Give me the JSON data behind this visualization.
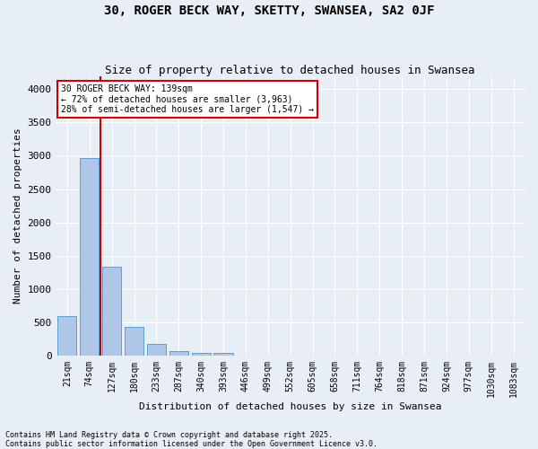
{
  "title1": "30, ROGER BECK WAY, SKETTY, SWANSEA, SA2 0JF",
  "title2": "Size of property relative to detached houses in Swansea",
  "xlabel": "Distribution of detached houses by size in Swansea",
  "ylabel": "Number of detached properties",
  "categories": [
    "21sqm",
    "74sqm",
    "127sqm",
    "180sqm",
    "233sqm",
    "287sqm",
    "340sqm",
    "393sqm",
    "446sqm",
    "499sqm",
    "552sqm",
    "605sqm",
    "658sqm",
    "711sqm",
    "764sqm",
    "818sqm",
    "871sqm",
    "924sqm",
    "977sqm",
    "1030sqm",
    "1083sqm"
  ],
  "values": [
    590,
    2970,
    1340,
    430,
    175,
    70,
    45,
    35,
    0,
    0,
    0,
    0,
    0,
    0,
    0,
    0,
    0,
    0,
    0,
    0,
    0
  ],
  "bar_color": "#aec6e8",
  "bar_edge_color": "#5a9fd4",
  "vline_x": 1.5,
  "vline_color": "#cc0000",
  "annotation_text": "30 ROGER BECK WAY: 139sqm\n← 72% of detached houses are smaller (3,963)\n28% of semi-detached houses are larger (1,547) →",
  "annotation_box_color": "#ffffff",
  "annotation_box_edge_color": "#cc0000",
  "bg_color": "#e8eef5",
  "plot_bg_color": "#e8eef5",
  "grid_color": "#ffffff",
  "ylim": [
    0,
    4200
  ],
  "yticks": [
    0,
    500,
    1000,
    1500,
    2000,
    2500,
    3000,
    3500,
    4000
  ],
  "footer1": "Contains HM Land Registry data © Crown copyright and database right 2025.",
  "footer2": "Contains public sector information licensed under the Open Government Licence v3.0.",
  "title_fontsize": 10,
  "subtitle_fontsize": 9,
  "tick_fontsize": 7,
  "ylabel_fontsize": 8,
  "xlabel_fontsize": 8,
  "footer_fontsize": 6,
  "annotation_fontsize": 7
}
